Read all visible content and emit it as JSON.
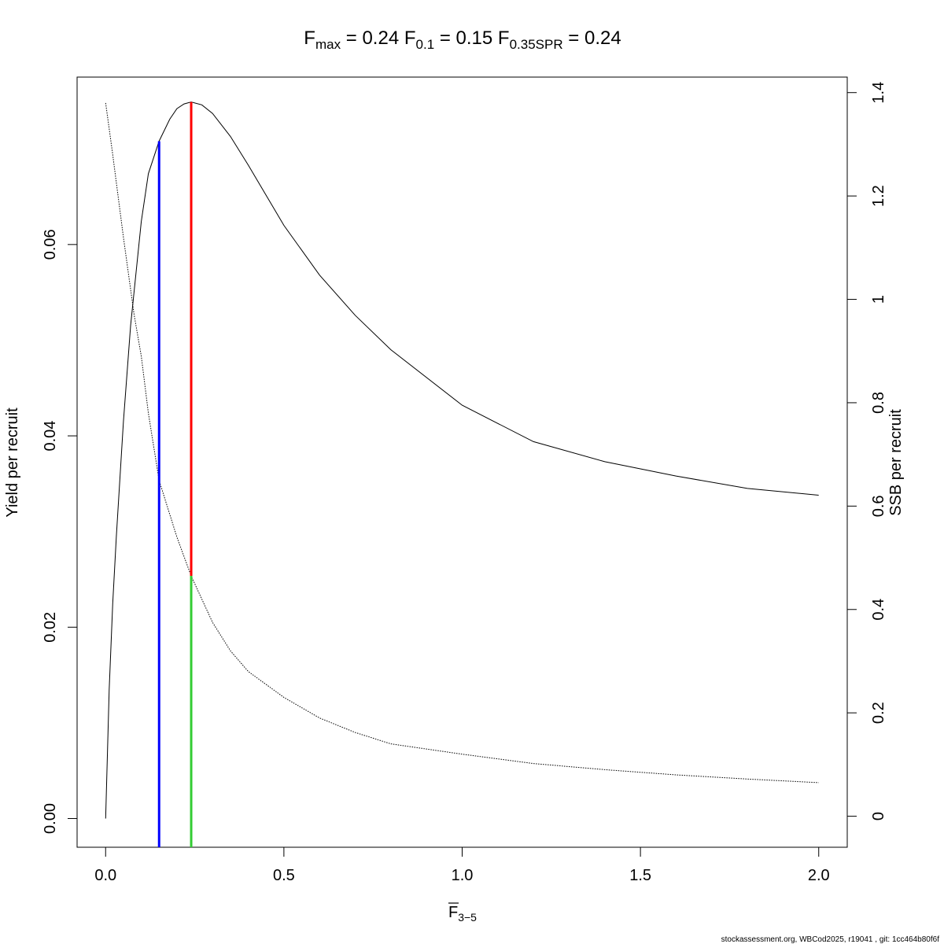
{
  "chart_data": {
    "type": "line",
    "title": {
      "fmax": {
        "base": "F",
        "sub": "max",
        "value": "0.24"
      },
      "f01": {
        "base": "F",
        "sub": "0.1",
        "value": "0.15"
      },
      "f35spr": {
        "base": "F",
        "sub": "0.35SPR",
        "value": "0.24"
      }
    },
    "xlabel": {
      "base": "F",
      "sub": "3−5"
    },
    "ylabel_left": "Yield per recruit",
    "ylabel_right": "SSB per recruit",
    "xlim": [
      -0.08,
      2.08
    ],
    "ylim_left": [
      -0.003,
      0.0775
    ],
    "ylim_right": [
      -0.06,
      1.43
    ],
    "x_ticks": [
      "0.0",
      "0.5",
      "1.0",
      "1.5",
      "2.0"
    ],
    "x_tick_values": [
      0,
      0.5,
      1.0,
      1.5,
      2.0
    ],
    "y_left_ticks": [
      "0.00",
      "0.02",
      "0.04",
      "0.06"
    ],
    "y_left_tick_values": [
      0,
      0.02,
      0.04,
      0.06
    ],
    "y_right_ticks": [
      "0",
      "0.2",
      "0.4",
      "0.6",
      "0.8",
      "1",
      "1.2",
      "1.4"
    ],
    "y_right_tick_values": [
      0,
      0.2,
      0.4,
      0.6,
      0.8,
      1.0,
      1.2,
      1.4
    ],
    "series": [
      {
        "name": "Yield per recruit",
        "axis": "left",
        "style": "solid",
        "color": "#000000",
        "x": [
          0,
          0.01,
          0.02,
          0.03,
          0.05,
          0.07,
          0.1,
          0.12,
          0.15,
          0.18,
          0.2,
          0.22,
          0.24,
          0.27,
          0.3,
          0.35,
          0.4,
          0.5,
          0.6,
          0.7,
          0.8,
          1.0,
          1.2,
          1.4,
          1.6,
          1.8,
          2.0
        ],
        "y": [
          0,
          0.0135,
          0.0225,
          0.0295,
          0.0415,
          0.0515,
          0.0624,
          0.0674,
          0.0708,
          0.0731,
          0.0742,
          0.0747,
          0.0749,
          0.0746,
          0.0737,
          0.0713,
          0.0683,
          0.062,
          0.0568,
          0.0526,
          0.049,
          0.0432,
          0.0394,
          0.0373,
          0.0358,
          0.0345,
          0.0338
        ]
      },
      {
        "name": "SSB per recruit",
        "axis": "right",
        "style": "dotted",
        "color": "#000000",
        "x": [
          0,
          0.02,
          0.05,
          0.08,
          0.1,
          0.12,
          0.15,
          0.2,
          0.24,
          0.3,
          0.35,
          0.4,
          0.5,
          0.6,
          0.7,
          0.8,
          1.0,
          1.2,
          1.4,
          1.6,
          1.8,
          2.0
        ],
        "y": [
          1.38,
          1.28,
          1.12,
          0.97,
          0.89,
          0.78,
          0.65,
          0.54,
          0.465,
          0.375,
          0.32,
          0.28,
          0.23,
          0.19,
          0.162,
          0.14,
          0.12,
          0.102,
          0.09,
          0.08,
          0.072,
          0.065
        ]
      }
    ],
    "reference_lines": [
      {
        "name": "F0.1",
        "x": 0.15,
        "from_axis": "bottom",
        "to_left_y": 0.0708,
        "color": "#0000ff"
      },
      {
        "name": "Fmax",
        "x": 0.24,
        "from_right_y": 0.465,
        "to_left_y": 0.0749,
        "color": "#ff0000"
      },
      {
        "name": "F0.35SPR",
        "x": 0.24,
        "from_axis": "bottom",
        "to_right_y": 0.465,
        "color": "#33cc33"
      }
    ],
    "grid": false,
    "legend": "none"
  },
  "footer": "stockassessment.org, WBCod2025, r19041 , git: 1cc464b80f6f"
}
